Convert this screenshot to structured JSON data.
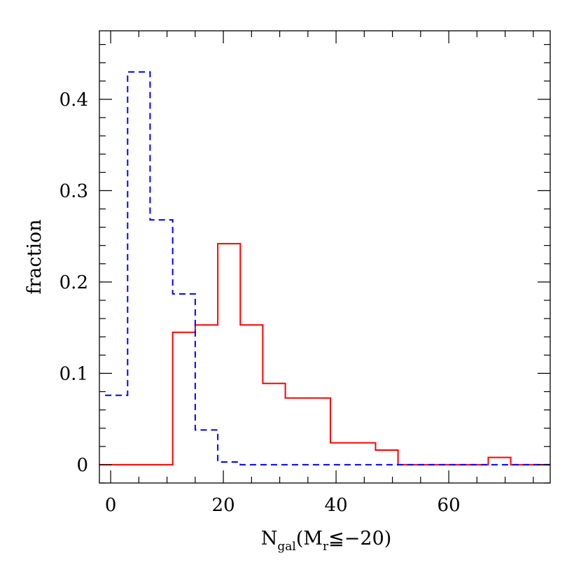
{
  "chart_data": {
    "type": "histogram",
    "xlabel": {
      "base": "N",
      "sub": "gal",
      "open": "(M",
      "sub2": "r",
      "rest": "≦−20)"
    },
    "ylabel": "fraction",
    "xlim": [
      -2,
      78
    ],
    "ylim": [
      -0.02,
      0.475
    ],
    "x_ticks": [
      0,
      20,
      40,
      60
    ],
    "x_tick_labels": [
      "0",
      "20",
      "40",
      "60"
    ],
    "x_minor_step": 5,
    "y_ticks": [
      0,
      0.1,
      0.2,
      0.3,
      0.4
    ],
    "y_tick_labels": [
      "0",
      "0.1",
      "0.2",
      "0.3",
      "0.4"
    ],
    "y_minor_step": 0.02,
    "grid": false,
    "series": [
      {
        "style": "solid",
        "color": "#ff0000",
        "steps": [
          {
            "x0": -2,
            "x1": 11,
            "y": 0
          },
          {
            "x0": 11,
            "x1": 15,
            "y": 0.145
          },
          {
            "x0": 15,
            "x1": 19,
            "y": 0.153
          },
          {
            "x0": 19,
            "x1": 23,
            "y": 0.242
          },
          {
            "x0": 23,
            "x1": 27,
            "y": 0.153
          },
          {
            "x0": 27,
            "x1": 31,
            "y": 0.089
          },
          {
            "x0": 31,
            "x1": 39,
            "y": 0.073
          },
          {
            "x0": 39,
            "x1": 47,
            "y": 0.024
          },
          {
            "x0": 47,
            "x1": 51,
            "y": 0.016
          },
          {
            "x0": 51,
            "x1": 67,
            "y": 0
          },
          {
            "x0": 67,
            "x1": 71,
            "y": 0.008
          },
          {
            "x0": 71,
            "x1": 78,
            "y": 0
          }
        ]
      },
      {
        "style": "dashed",
        "color": "#0000ff",
        "steps": [
          {
            "x0": -1,
            "x1": 3,
            "y": 0.076
          },
          {
            "x0": 3,
            "x1": 7,
            "y": 0.43
          },
          {
            "x0": 7,
            "x1": 11,
            "y": 0.268
          },
          {
            "x0": 11,
            "x1": 15,
            "y": 0.187
          },
          {
            "x0": 15,
            "x1": 19,
            "y": 0.038
          },
          {
            "x0": 19,
            "x1": 23,
            "y": 0.003
          },
          {
            "x0": 23,
            "x1": 78,
            "y": 0
          }
        ]
      }
    ]
  }
}
